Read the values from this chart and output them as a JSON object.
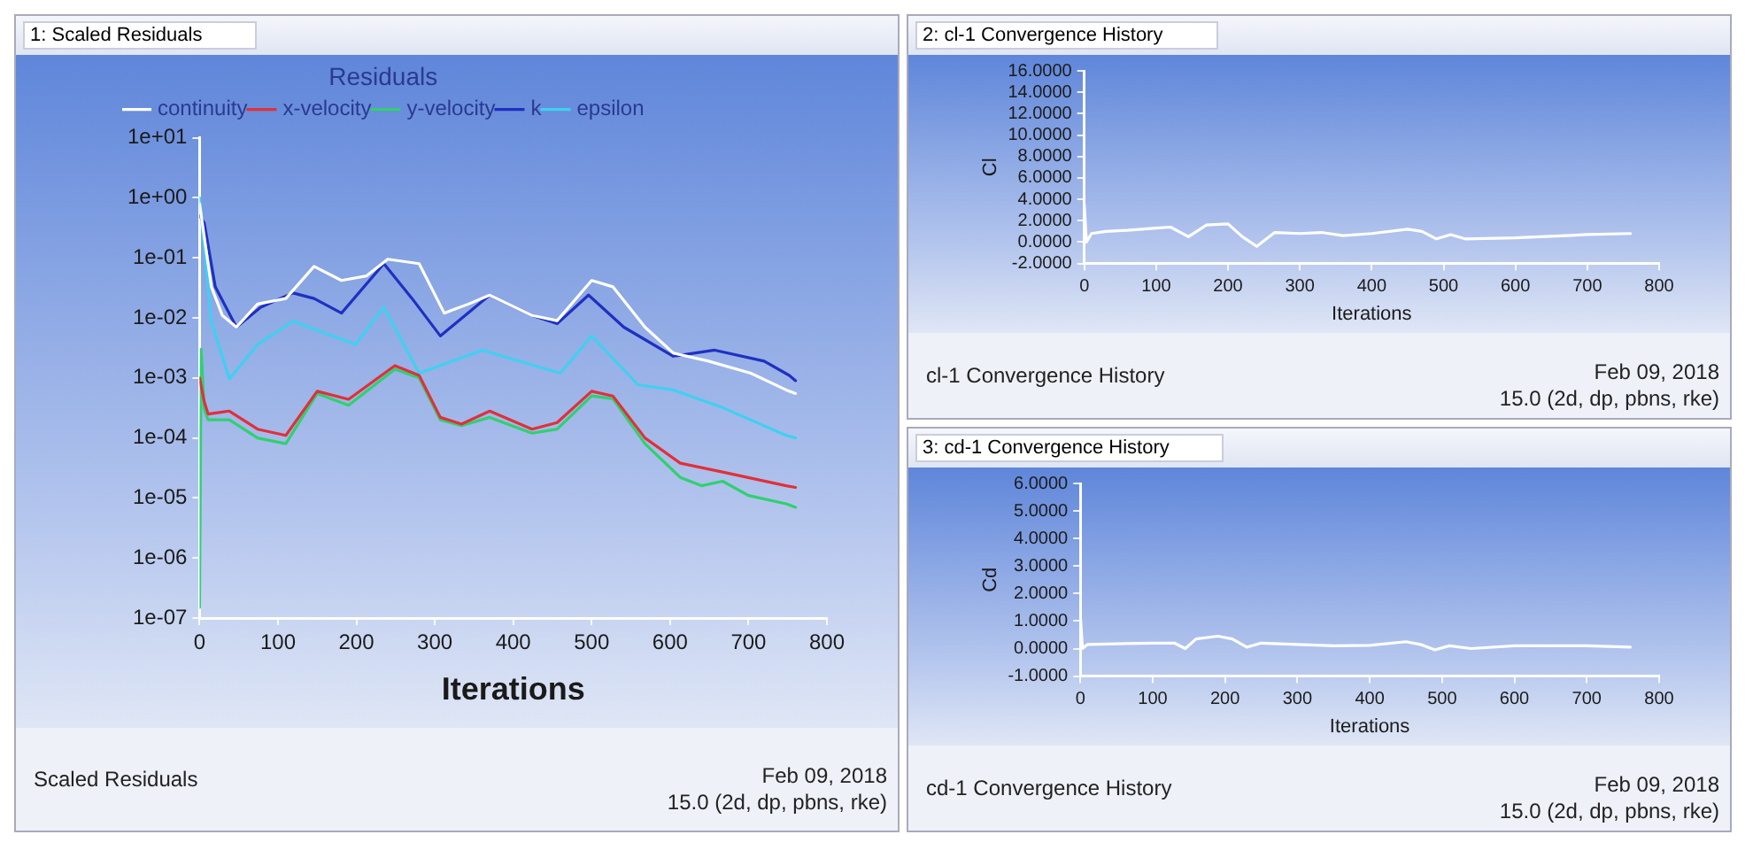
{
  "chart_data": [
    {
      "type": "line",
      "title": "1: Scaled Residuals",
      "xlabel": "Iterations",
      "legend_title": "Residuals",
      "legend": "top left",
      "log": "y",
      "grid": false,
      "marker": "none",
      "line_style": "solid",
      "xlim": [
        0,
        800
      ],
      "xticks": [
        0,
        100,
        200,
        300,
        400,
        500,
        600,
        700,
        800
      ],
      "ylim": [
        1e-07,
        10
      ],
      "yticks": [
        {
          "value": 1e-07,
          "label": "1e-07"
        },
        {
          "value": 1e-06,
          "label": "1e-06"
        },
        {
          "value": 1e-05,
          "label": "1e-05"
        },
        {
          "value": 0.0001,
          "label": "1e-04"
        },
        {
          "value": 0.001,
          "label": "1e-03"
        },
        {
          "value": 0.01,
          "label": "1e-02"
        },
        {
          "value": 0.1,
          "label": "1e-01"
        },
        {
          "value": 1,
          "label": "1e+00"
        },
        {
          "value": 10,
          "label": "1e+01"
        }
      ],
      "series": [
        {
          "name": "continuity",
          "color": "#ffffff",
          "x": [
            0,
            15,
            29,
            47,
            74,
            110,
            146,
            181,
            213,
            240,
            280,
            312,
            343,
            370,
            424,
            456,
            500,
            527,
            568,
            604,
            649,
            703,
            748,
            760
          ],
          "values": [
            0.8,
            0.033,
            0.011,
            0.007,
            0.017,
            0.021,
            0.072,
            0.042,
            0.05,
            0.095,
            0.08,
            0.012,
            0.017,
            0.024,
            0.011,
            0.009,
            0.042,
            0.033,
            0.007,
            0.0026,
            0.0019,
            0.0012,
            0.00063,
            0.00055
          ]
        },
        {
          "name": "x-velocity",
          "color": "#e0303a",
          "x": [
            0,
            6,
            11,
            38,
            74,
            110,
            150,
            190,
            249,
            280,
            307,
            334,
            370,
            424,
            456,
            500,
            527,
            568,
            613,
            667,
            748,
            760
          ],
          "values": [
            0.001,
            0.0004,
            0.00025,
            0.00028,
            0.00014,
            0.00011,
            0.0006,
            0.00044,
            0.0016,
            0.0011,
            0.00022,
            0.00017,
            0.00028,
            0.00014,
            0.00018,
            0.0006,
            0.0005,
            0.0001,
            3.8e-05,
            2.7e-05,
            1.6e-05,
            1.5e-05
          ]
        },
        {
          "name": "y-velocity",
          "color": "#30d070",
          "x": [
            0,
            2,
            6,
            11,
            38,
            74,
            110,
            150,
            190,
            249,
            280,
            307,
            334,
            370,
            424,
            456,
            500,
            527,
            568,
            613,
            640,
            667,
            700,
            748,
            760
          ],
          "values": [
            1.5e-07,
            0.003,
            0.0003,
            0.0002,
            0.0002,
            0.0001,
            8e-05,
            0.00055,
            0.00035,
            0.0014,
            0.001,
            0.0002,
            0.00016,
            0.00022,
            0.00012,
            0.00014,
            0.0005,
            0.00045,
            8e-05,
            2.2e-05,
            1.6e-05,
            1.9e-05,
            1.1e-05,
            8e-06,
            7e-06
          ]
        },
        {
          "name": "k",
          "color": "#2030c0",
          "x": [
            0,
            6,
            20,
            47,
            78,
            119,
            146,
            181,
            235,
            271,
            307,
            370,
            424,
            456,
            496,
            541,
            604,
            657,
            720,
            752,
            760
          ],
          "values": [
            0.5,
            0.38,
            0.033,
            0.007,
            0.015,
            0.026,
            0.021,
            0.012,
            0.08,
            0.021,
            0.005,
            0.024,
            0.011,
            0.008,
            0.024,
            0.007,
            0.0023,
            0.0029,
            0.0019,
            0.0011,
            0.0009
          ]
        },
        {
          "name": "epsilon",
          "color": "#40d0f0",
          "x": [
            0,
            15,
            38,
            74,
            119,
            199,
            235,
            280,
            361,
            460,
            500,
            559,
            604,
            667,
            748,
            760
          ],
          "values": [
            1,
            0.0088,
            0.00096,
            0.0036,
            0.0088,
            0.0036,
            0.015,
            0.0012,
            0.0029,
            0.0012,
            0.005,
            0.00077,
            0.00063,
            0.00032,
            0.00011,
            0.0001
          ]
        }
      ],
      "annotations": [
        "Scaled Residuals",
        "Feb 09, 2018",
        "15.0 (2d, dp, pbns, rke)"
      ]
    },
    {
      "type": "line",
      "title": "2: cl-1 Convergence History",
      "xlabel": "Iterations",
      "ylabel": "Cl",
      "grid": false,
      "marker": "none",
      "line_style": "solid",
      "xlim": [
        0,
        800
      ],
      "xticks": [
        0,
        100,
        200,
        300,
        400,
        500,
        600,
        700,
        800
      ],
      "ylim": [
        -2,
        16
      ],
      "yticks": [
        {
          "value": -2,
          "label": "-2.0000"
        },
        {
          "value": 0,
          "label": "0.0000"
        },
        {
          "value": 2,
          "label": "2.0000"
        },
        {
          "value": 4,
          "label": "4.0000"
        },
        {
          "value": 6,
          "label": "6.0000"
        },
        {
          "value": 8,
          "label": "8.0000"
        },
        {
          "value": 10,
          "label": "10.0000"
        },
        {
          "value": 12,
          "label": "12.0000"
        },
        {
          "value": 14,
          "label": "14.0000"
        },
        {
          "value": 16,
          "label": "16.0000"
        }
      ],
      "series": [
        {
          "color": "#ffffff",
          "x": [
            0,
            3,
            10,
            30,
            60,
            100,
            120,
            145,
            170,
            200,
            220,
            240,
            265,
            300,
            330,
            360,
            400,
            450,
            470,
            490,
            510,
            530,
            600,
            700,
            760
          ],
          "values": [
            3.5,
            0,
            0.8,
            1.0,
            1.1,
            1.3,
            1.4,
            0.5,
            1.6,
            1.7,
            0.5,
            -0.4,
            0.9,
            0.8,
            0.9,
            0.6,
            0.8,
            1.2,
            1.0,
            0.3,
            0.7,
            0.3,
            0.4,
            0.7,
            0.8
          ]
        }
      ],
      "annotations": [
        "cl-1 Convergence History",
        "Feb 09, 2018",
        "15.0 (2d, dp, pbns, rke)"
      ]
    },
    {
      "type": "line",
      "title": "3: cd-1 Convergence History",
      "xlabel": "Iterations",
      "ylabel": "Cd",
      "grid": false,
      "marker": "none",
      "line_style": "solid",
      "xlim": [
        0,
        800
      ],
      "xticks": [
        0,
        100,
        200,
        300,
        400,
        500,
        600,
        700,
        800
      ],
      "ylim": [
        -1,
        6
      ],
      "yticks": [
        {
          "value": -1,
          "label": "-1.0000"
        },
        {
          "value": 0,
          "label": "0.0000"
        },
        {
          "value": 1,
          "label": "1.0000"
        },
        {
          "value": 2,
          "label": "2.0000"
        },
        {
          "value": 3,
          "label": "3.0000"
        },
        {
          "value": 4,
          "label": "4.0000"
        },
        {
          "value": 5,
          "label": "5.0000"
        },
        {
          "value": 6,
          "label": "6.0000"
        }
      ],
      "series": [
        {
          "color": "#ffffff",
          "x": [
            0,
            3,
            10,
            100,
            130,
            145,
            160,
            190,
            210,
            230,
            250,
            300,
            350,
            400,
            450,
            470,
            490,
            510,
            540,
            600,
            700,
            760
          ],
          "values": [
            1.2,
            0,
            0.15,
            0.2,
            0.2,
            0.0,
            0.35,
            0.45,
            0.35,
            0.05,
            0.2,
            0.15,
            0.1,
            0.12,
            0.25,
            0.15,
            -0.05,
            0.1,
            0.0,
            0.1,
            0.1,
            0.05
          ]
        }
      ],
      "annotations": [
        "cd-1 Convergence History",
        "Feb 09, 2018",
        "15.0 (2d, dp, pbns, rke)"
      ]
    }
  ]
}
